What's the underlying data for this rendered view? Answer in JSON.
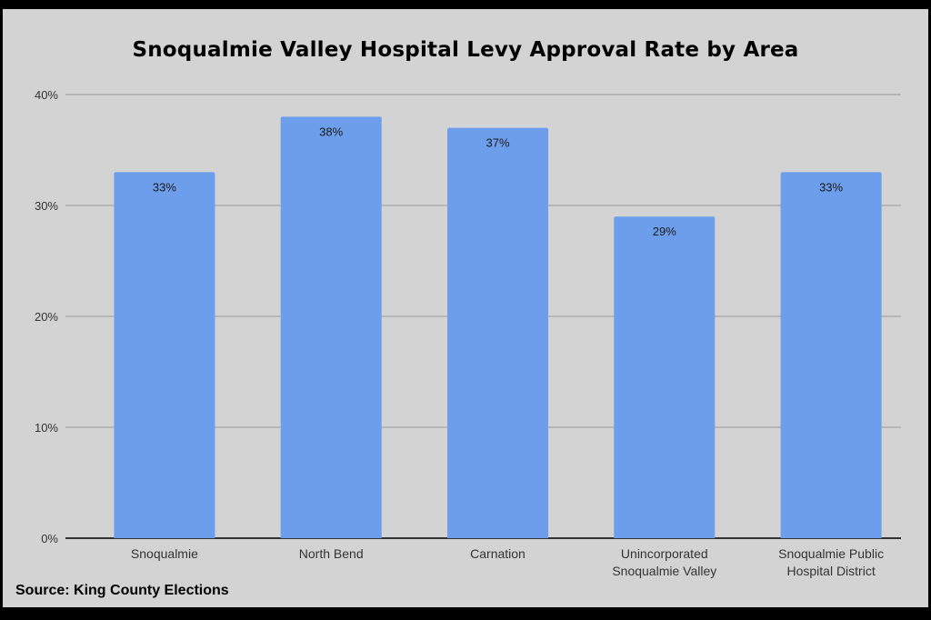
{
  "chart_data": {
    "type": "bar",
    "title": "Snoqualmie Valley Hospital Levy Approval Rate by Area",
    "categories": [
      "Snoqualmie",
      "North Bend",
      "Carnation",
      "Unincorporated Snoqualmie Valley",
      "Snoqualmie Public Hospital District"
    ],
    "category_lines": [
      [
        "Snoqualmie"
      ],
      [
        "North Bend"
      ],
      [
        "Carnation"
      ],
      [
        "Unincorporated",
        "Snoqualmie Valley"
      ],
      [
        "Snoqualmie Public",
        "Hospital District"
      ]
    ],
    "values": [
      33,
      38,
      37,
      29,
      33
    ],
    "data_labels": [
      "33%",
      "38%",
      "37%",
      "29%",
      "33%"
    ],
    "xlabel": "",
    "ylabel": "",
    "ylim": [
      0,
      40
    ],
    "yticks": [
      0,
      10,
      20,
      30,
      40
    ],
    "ytick_labels": [
      "0%",
      "10%",
      "20%",
      "30%",
      "40%"
    ],
    "grid": true,
    "legend": "none",
    "colors": {
      "bar": "#6d9eeb",
      "background": "#d3d3d3",
      "frame": "#000000"
    }
  },
  "source": "Source: King County Elections"
}
